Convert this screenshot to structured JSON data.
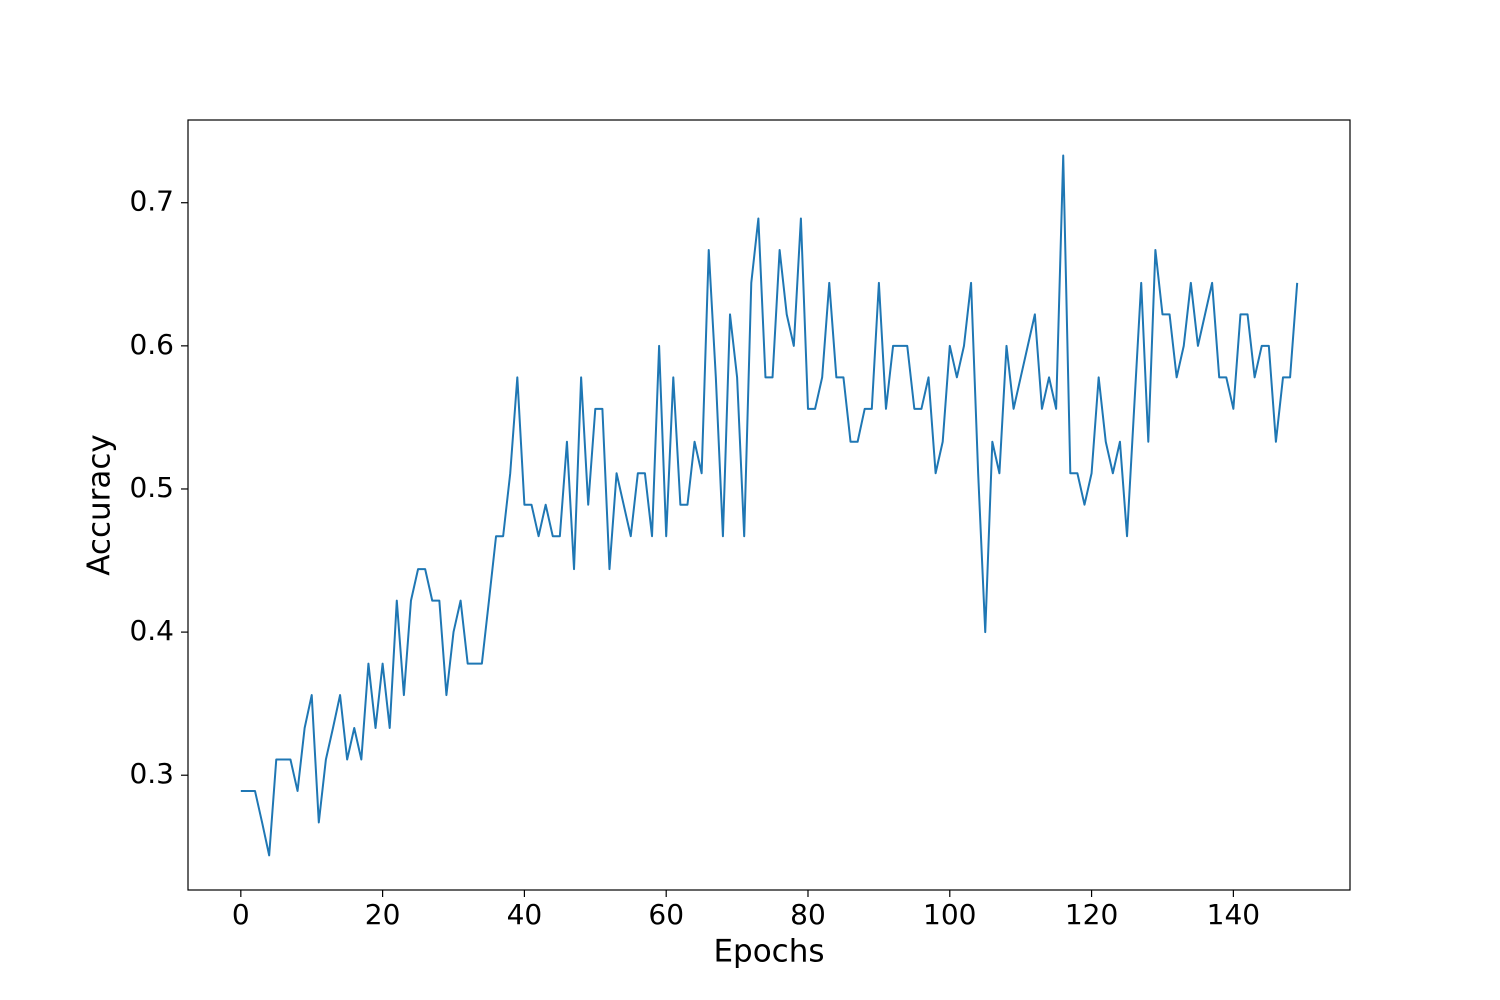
{
  "chart_data": {
    "type": "line",
    "xlabel": "Epochs",
    "ylabel": "Accuracy",
    "x": [
      0,
      1,
      2,
      3,
      4,
      5,
      6,
      7,
      8,
      9,
      10,
      11,
      12,
      13,
      14,
      15,
      16,
      17,
      18,
      19,
      20,
      21,
      22,
      23,
      24,
      25,
      26,
      27,
      28,
      29,
      30,
      31,
      32,
      33,
      34,
      35,
      36,
      37,
      38,
      39,
      40,
      41,
      42,
      43,
      44,
      45,
      46,
      47,
      48,
      49,
      50,
      51,
      52,
      53,
      54,
      55,
      56,
      57,
      58,
      59,
      60,
      61,
      62,
      63,
      64,
      65,
      66,
      67,
      68,
      69,
      70,
      71,
      72,
      73,
      74,
      75,
      76,
      77,
      78,
      79,
      80,
      81,
      82,
      83,
      84,
      85,
      86,
      87,
      88,
      89,
      90,
      91,
      92,
      93,
      94,
      95,
      96,
      97,
      98,
      99,
      100,
      101,
      102,
      103,
      104,
      105,
      106,
      107,
      108,
      109,
      110,
      111,
      112,
      113,
      114,
      115,
      116,
      117,
      118,
      119,
      120,
      121,
      122,
      123,
      124,
      125,
      126,
      127,
      128,
      129,
      130,
      131,
      132,
      133,
      134,
      135,
      136,
      137,
      138,
      139,
      140,
      141,
      142,
      143,
      144,
      145,
      146,
      147,
      148,
      149
    ],
    "series": [
      {
        "color": "#1f77b4",
        "values": [
          0.289,
          0.289,
          0.289,
          0.267,
          0.244,
          0.311,
          0.311,
          0.311,
          0.289,
          0.333,
          0.356,
          0.267,
          0.311,
          0.333,
          0.356,
          0.311,
          0.333,
          0.311,
          0.378,
          0.333,
          0.378,
          0.333,
          0.422,
          0.356,
          0.422,
          0.444,
          0.444,
          0.422,
          0.422,
          0.356,
          0.4,
          0.422,
          0.378,
          0.378,
          0.378,
          0.422,
          0.467,
          0.467,
          0.511,
          0.578,
          0.489,
          0.489,
          0.467,
          0.489,
          0.467,
          0.467,
          0.533,
          0.444,
          0.578,
          0.489,
          0.556,
          0.556,
          0.444,
          0.511,
          0.489,
          0.467,
          0.511,
          0.511,
          0.467,
          0.6,
          0.467,
          0.578,
          0.489,
          0.489,
          0.533,
          0.511,
          0.667,
          0.578,
          0.467,
          0.622,
          0.578,
          0.467,
          0.644,
          0.689,
          0.578,
          0.578,
          0.667,
          0.622,
          0.6,
          0.689,
          0.556,
          0.556,
          0.578,
          0.644,
          0.578,
          0.578,
          0.533,
          0.533,
          0.556,
          0.556,
          0.644,
          0.556,
          0.6,
          0.6,
          0.6,
          0.556,
          0.556,
          0.578,
          0.511,
          0.533,
          0.6,
          0.578,
          0.6,
          0.644,
          0.511,
          0.4,
          0.533,
          0.511,
          0.6,
          0.556,
          0.578,
          0.6,
          0.622,
          0.556,
          0.578,
          0.556,
          0.733,
          0.511,
          0.511,
          0.489,
          0.511,
          0.578,
          0.533,
          0.511,
          0.533,
          0.467,
          0.556,
          0.644,
          0.533,
          0.667,
          0.622,
          0.622,
          0.578,
          0.6,
          0.644,
          0.6,
          0.622,
          0.644,
          0.578,
          0.578,
          0.556,
          0.622,
          0.622,
          0.578,
          0.6,
          0.6,
          0.533,
          0.578,
          0.578,
          0.644
        ]
      }
    ],
    "xlim": [
      -7.45,
      156.45
    ],
    "ylim": [
      0.2198,
      0.7578
    ],
    "xticks": [
      0,
      20,
      40,
      60,
      80,
      100,
      120,
      140
    ],
    "yticks": [
      0.3,
      0.4,
      0.5,
      0.6,
      0.7
    ],
    "grid": false
  }
}
